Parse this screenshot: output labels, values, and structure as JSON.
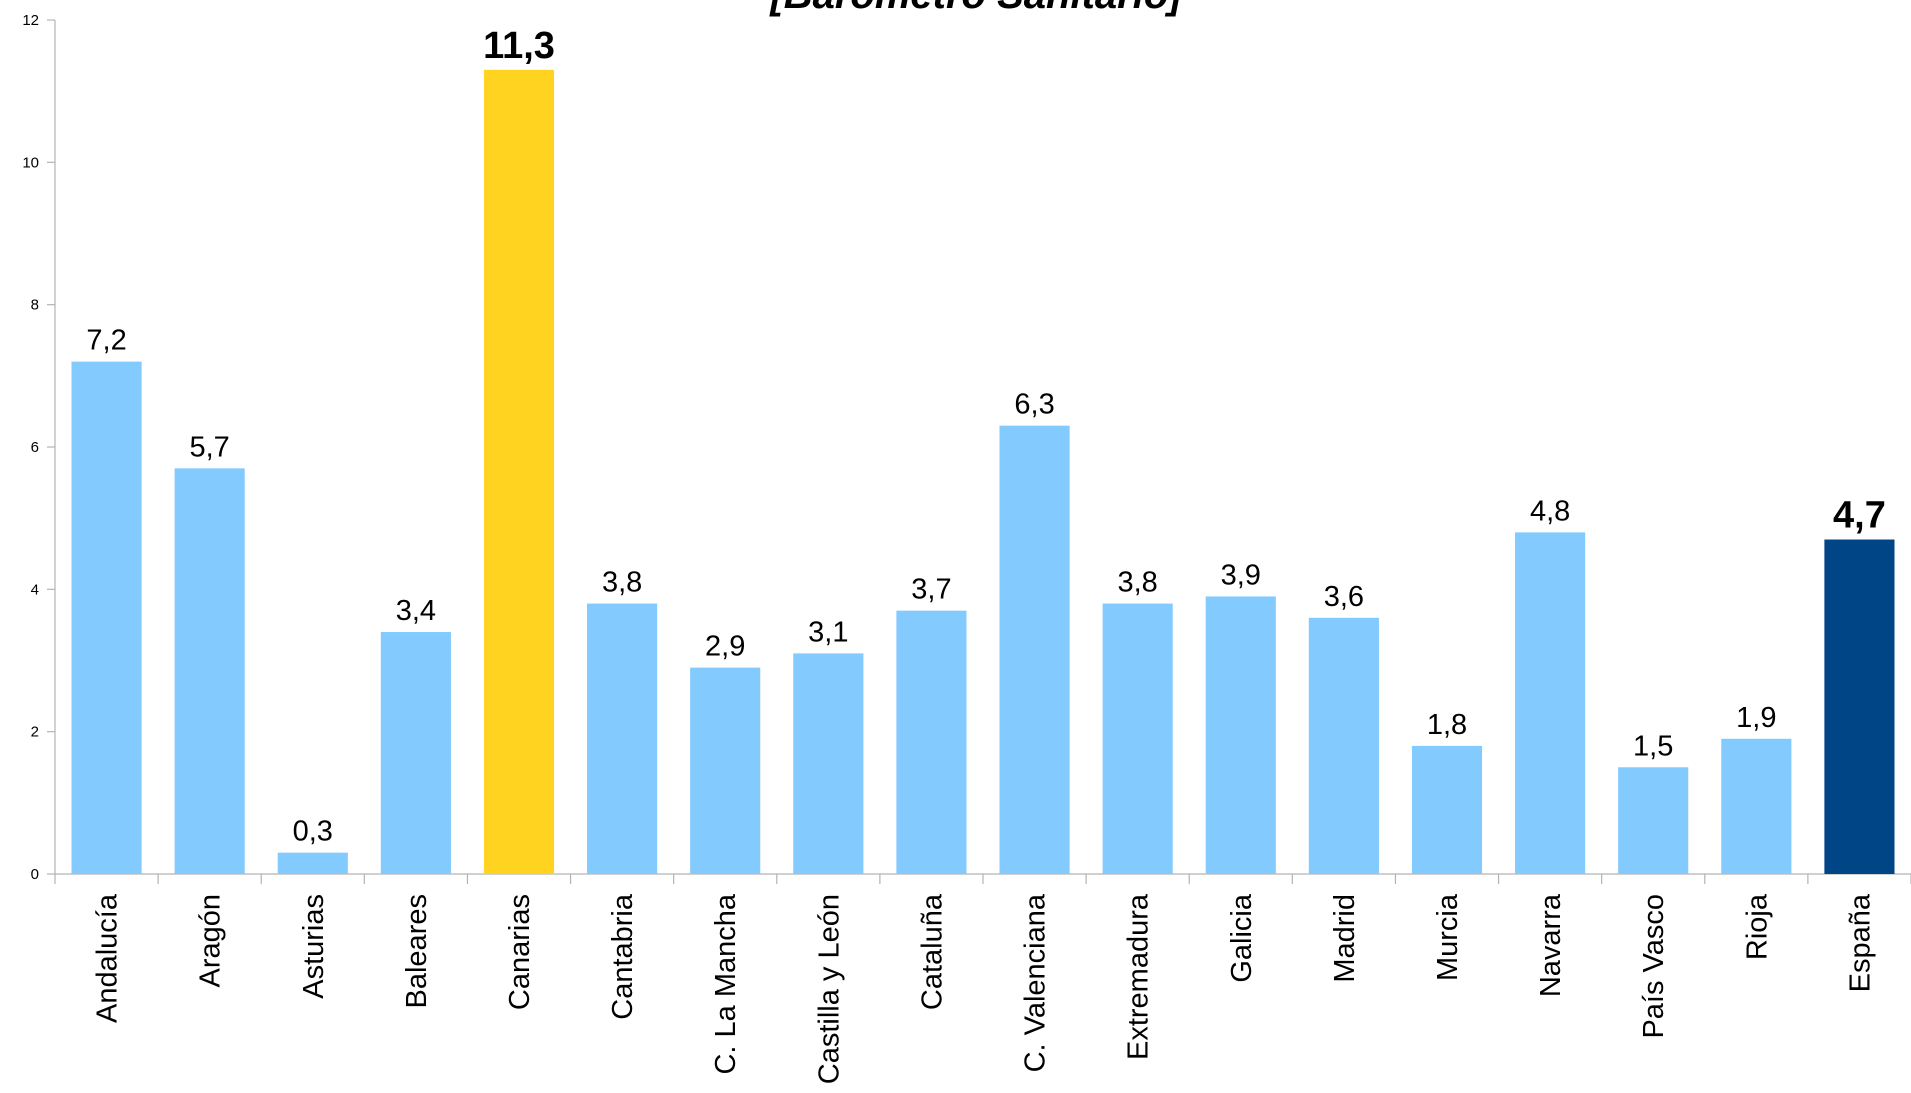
{
  "chart_data": {
    "type": "bar",
    "title": "[Barómetro Sanitario]",
    "categories": [
      "Andalucía",
      "Aragón",
      "Asturias",
      "Baleares",
      "Canarias",
      "Cantabria",
      "C. La Mancha",
      "Castilla y León",
      "Cataluña",
      "C. Valenciana",
      "Extremadura",
      "Galicia",
      "Madrid",
      "Murcia",
      "Navarra",
      "País Vasco",
      "Rioja",
      "España"
    ],
    "values": [
      7.2,
      5.7,
      0.3,
      3.4,
      11.3,
      3.8,
      2.9,
      3.1,
      3.7,
      6.3,
      3.8,
      3.9,
      3.6,
      1.8,
      4.8,
      1.5,
      1.9,
      4.7
    ],
    "value_labels": [
      "7,2",
      "5,7",
      "0,3",
      "3,4",
      "11,3",
      "3,8",
      "2,9",
      "3,1",
      "3,7",
      "6,3",
      "3,8",
      "3,9",
      "3,6",
      "1,8",
      "4,8",
      "1,5",
      "1,9",
      "4,7"
    ],
    "color": "#83caff",
    "colors": [
      "#83caff",
      "#83caff",
      "#83caff",
      "#83caff",
      "#ffd320",
      "#83caff",
      "#83caff",
      "#83caff",
      "#83caff",
      "#83caff",
      "#83caff",
      "#83caff",
      "#83caff",
      "#83caff",
      "#83caff",
      "#83caff",
      "#83caff",
      "#004586"
    ],
    "ylim": [
      0,
      12
    ],
    "yticks": [
      0,
      2,
      4,
      6,
      8,
      10,
      12
    ],
    "grid": false
  }
}
